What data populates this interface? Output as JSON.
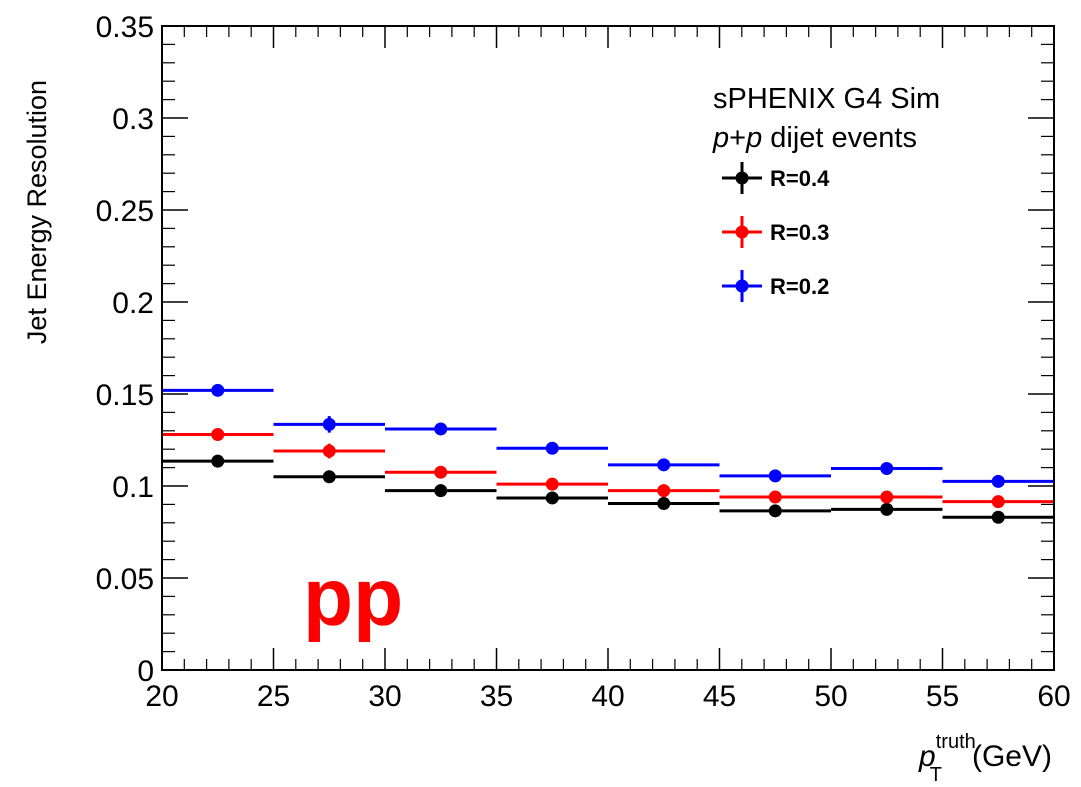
{
  "chart_data": {
    "type": "scatter",
    "xlabel_main": "p",
    "xlabel_sup": "truth",
    "xlabel_sub": "T",
    "xlabel_unit": "(GeV)",
    "ylabel": "Jet Energy Resolution",
    "xlim": [
      20,
      60
    ],
    "ylim": [
      0,
      0.35
    ],
    "x_ticks": [
      "20",
      "25",
      "30",
      "35",
      "40",
      "45",
      "50",
      "55",
      "60"
    ],
    "y_ticks": [
      "0",
      "0.05",
      "0.1",
      "0.15",
      "0.2",
      "0.25",
      "0.3",
      "0.35"
    ],
    "bins": [
      [
        20,
        25
      ],
      [
        25,
        30
      ],
      [
        30,
        35
      ],
      [
        35,
        40
      ],
      [
        40,
        45
      ],
      [
        45,
        50
      ],
      [
        50,
        55
      ],
      [
        55,
        60
      ]
    ],
    "x": [
      22.5,
      27.5,
      32.5,
      37.5,
      42.5,
      47.5,
      52.5,
      57.5
    ],
    "series": [
      {
        "name": "R=0.4",
        "color": "#000000",
        "values": [
          0.1135,
          0.105,
          0.0975,
          0.0935,
          0.0905,
          0.0865,
          0.0873,
          0.083
        ],
        "errors": [
          0.001,
          0.001,
          0.001,
          0.001,
          0.001,
          0.001,
          0.001,
          0.001
        ]
      },
      {
        "name": "R=0.3",
        "color": "#ff0000",
        "values": [
          0.128,
          0.119,
          0.1075,
          0.101,
          0.0975,
          0.094,
          0.094,
          0.0915
        ],
        "errors": [
          0.001,
          0.004,
          0.001,
          0.0015,
          0.001,
          0.001,
          0.001,
          0.001
        ]
      },
      {
        "name": "R=0.2",
        "color": "#0000ff",
        "values": [
          0.152,
          0.1335,
          0.131,
          0.1205,
          0.1115,
          0.1055,
          0.1095,
          0.1025
        ],
        "errors": [
          0.001,
          0.0045,
          0.001,
          0.0015,
          0.001,
          0.001,
          0.001,
          0.001
        ]
      }
    ],
    "legend_position": "top-right",
    "annotations": {
      "line1": "sPHENIX G4 Sim",
      "line2_italic_a": "p",
      "line2_plus": "+",
      "line2_italic_b": "p",
      "line2_rest": " dijet events"
    },
    "big_label": "pp",
    "big_label_color": "#ff0000"
  }
}
